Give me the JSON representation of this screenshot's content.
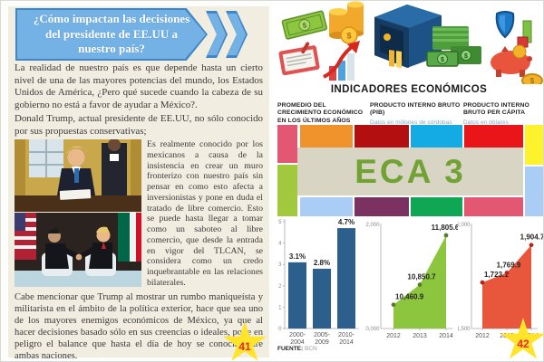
{
  "left_page": {
    "title": "¿Cómo impactan las decisiones del presidente de EE.UU a nuestro país?",
    "paragraphs": {
      "p1": "La realidad de nuestro país es que depende hasta un cierto nivel de una de las mayores potencias del mundo, los Estados Unidos de América, ¿Pero qué sucede cuando la cabeza de su gobierno no está a favor de ayudar a México?.",
      "p2": "Donald Trump, actual presidente de EE.UU, no sólo conocido por sus propuestas conservativas;",
      "p3": "Es realmente conocido por los mexicanos a causa de la insistencia en crear un muro fronterizo con nuestro país sin pensar en como esto afecta a inversionistas y pone en duda el tratado de libre comercio. Esto se puede hasta llegar a tomar como un saboteo al libre comercio, que desde la entrada en vigor del TLCAN, se considera como un credo inquebrantable en las relaciones bilaterales.",
      "p4": "Cabe mencionar que Trump al mostrar un rumbo maniqueísta y militarista en el ámbito de la política exterior, hace que sea uno de los mayores enemigos económicos de México, ya que al hacer decisiones basado sólo en sus creencias o ideales, pone en peligro el balance que hasta el día de hoy se conocía entre ambas naciones."
    },
    "photos": [
      "trump-signing-oval-office",
      "trump-pena-nieto-handshake"
    ],
    "page_number": "41"
  },
  "infographic": {
    "title": "INDICADORES ECONÓMICOS",
    "overlay_label": "ECA 3",
    "source_label": "FUENTE:",
    "source_value": "BCN",
    "page_number": "42",
    "icons": [
      "money-bill-icon",
      "coin-stack-icon",
      "clipboard-icon",
      "growth-arrow-chart-icon",
      "safe-icon",
      "cash-stack-icon",
      "shield-icon",
      "mini-bars-icon",
      "piggy-bank-icon",
      "gold-coin-icon"
    ],
    "columns": [
      {
        "title": "PROMEDIO DEL CRECIMIENTO ECONÓMICO EN LOS ÚLTIMOS AÑOS",
        "subtitle": ""
      },
      {
        "title": "PRODUCTO INTERNO BRUTO (PIB)",
        "subtitle": "Datos en millones de córdobas"
      },
      {
        "title": "PRODUCTO INTERNO BRUTO PER CÁPITA",
        "subtitle": "Datos en dólares"
      }
    ],
    "frame_colors": [
      "#e25873",
      "#a2c93d",
      "#f0932c",
      "#b30e10",
      "#14aae4",
      "#ea1518",
      "#fcf32c",
      "#a9cdf5",
      "#a9cdf5",
      "#7c3261",
      "#0fa753",
      "#e25873"
    ]
  },
  "colors": {
    "page_background": "#f1ede1",
    "title_box_fill": "#74b2e6",
    "title_box_border": "#3f86c7",
    "eca_text": "#71a233",
    "eca_panel": "#d9d5c5",
    "star_yellow": "#ffe42a",
    "star_number_red": "#e8262a"
  },
  "chart_data": [
    {
      "type": "bar",
      "title": "PROMEDIO DEL CRECIMIENTO ECONÓMICO EN LOS ÚLTIMOS AÑOS",
      "categories": [
        "2000-2004",
        "2005-2009",
        "2010-2014"
      ],
      "values": [
        3.1,
        2.8,
        4.7
      ],
      "labels": [
        "3.1%",
        "2.8%",
        "4.7%"
      ],
      "ylim": [
        0,
        5
      ],
      "yticks": [
        0,
        1,
        2,
        3,
        4,
        5
      ],
      "color": "#2d5f8c",
      "grid": false,
      "legend": "none"
    },
    {
      "type": "area",
      "title": "PRODUCTO INTERNO BRUTO (PIB)",
      "xlabel": "",
      "ylabel": "millones de córdobas",
      "categories": [
        "2012",
        "2013",
        "2014"
      ],
      "values": [
        10460.9,
        10850.7,
        11805.6
      ],
      "labels": [
        "10,460.9",
        "10,850.7",
        "11,805.6"
      ],
      "ylim": [
        10000,
        12000
      ],
      "ytick_labels": [
        "10,000",
        "12,000"
      ],
      "color": "#8cc63e",
      "dot_color": "#567d2e",
      "grid": false,
      "legend": "none"
    },
    {
      "type": "area",
      "title": "PRODUCTO INTERNO BRUTO PER CÁPITA",
      "xlabel": "",
      "ylabel": "dólares",
      "categories": [
        "2012",
        "2013",
        "2014"
      ],
      "values": [
        1723.1,
        1769.9,
        1904.7
      ],
      "labels": [
        "1,723.1",
        "1,769.9",
        "1,904.7"
      ],
      "ylim": [
        1500,
        2000
      ],
      "ytick_labels": [
        "1,500",
        "2,000"
      ],
      "color": "#e8563c",
      "dot_color": "#b5271d",
      "grid": false,
      "legend": "none"
    }
  ]
}
